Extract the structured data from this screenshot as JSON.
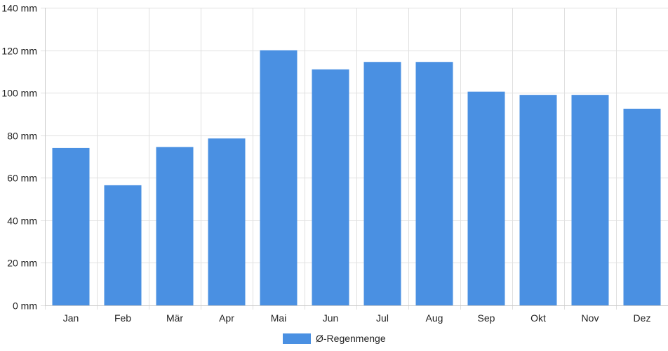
{
  "chart_data": {
    "type": "bar",
    "categories": [
      "Jan",
      "Feb",
      "Mär",
      "Apr",
      "Mai",
      "Jun",
      "Jul",
      "Aug",
      "Sep",
      "Okt",
      "Nov",
      "Dez"
    ],
    "series": [
      {
        "name": "Ø-Regenmenge",
        "color": "#4a90e2",
        "values": [
          74,
          56.5,
          74.5,
          78.5,
          120,
          111,
          114.5,
          114.5,
          100.5,
          99,
          99,
          92.5
        ]
      }
    ],
    "ylim": [
      0,
      140
    ],
    "y_ticks": [
      "0 mm",
      "20 mm",
      "40 mm",
      "60 mm",
      "80 mm",
      "100 mm",
      "120 mm",
      "140 mm"
    ],
    "y_tick_values": [
      0,
      20,
      40,
      60,
      80,
      100,
      120,
      140
    ],
    "grid": true,
    "legend_position": "bottom-center"
  }
}
